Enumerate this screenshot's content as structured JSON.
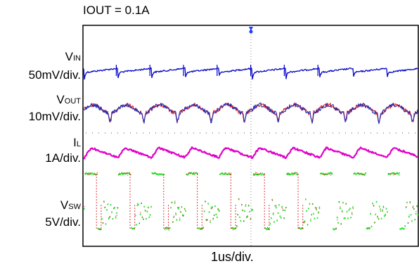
{
  "title": "IOUT = 0.1A",
  "xlabel": "1us/div.",
  "channels": [
    {
      "main": "V",
      "sub": "IN",
      "scale": "50mV/div.",
      "color": "#0000c8"
    },
    {
      "main": "V",
      "sub": "OUT",
      "scale": "10mV/div.",
      "color": "#1e2ab4"
    },
    {
      "main": "I",
      "sub": "L",
      "scale": "1A/div.",
      "color": "#e000c8"
    },
    {
      "main": "V",
      "sub": "SW",
      "scale": "5V/div.",
      "color": "#22dd22"
    }
  ],
  "chart_data": {
    "type": "line",
    "title": "IOUT = 0.1A",
    "xlabel": "1us/div.",
    "x_divisions": 10,
    "switching_period_div": 1.0,
    "series": [
      {
        "name": "VIN",
        "scale": "50mV/div.",
        "waveform": "sawtooth ripple with notch at switching edge",
        "color": "#0000c8"
      },
      {
        "name": "VOUT",
        "scale": "10mV/div.",
        "waveform": "noisy ripple",
        "color": "#1e2ab4"
      },
      {
        "name": "IL",
        "scale": "1A/div.",
        "waveform": "triangular",
        "color": "#e000c8"
      },
      {
        "name": "VSW",
        "scale": "5V/div.",
        "waveform": "square with ringing",
        "color": "#22dd22"
      }
    ]
  }
}
